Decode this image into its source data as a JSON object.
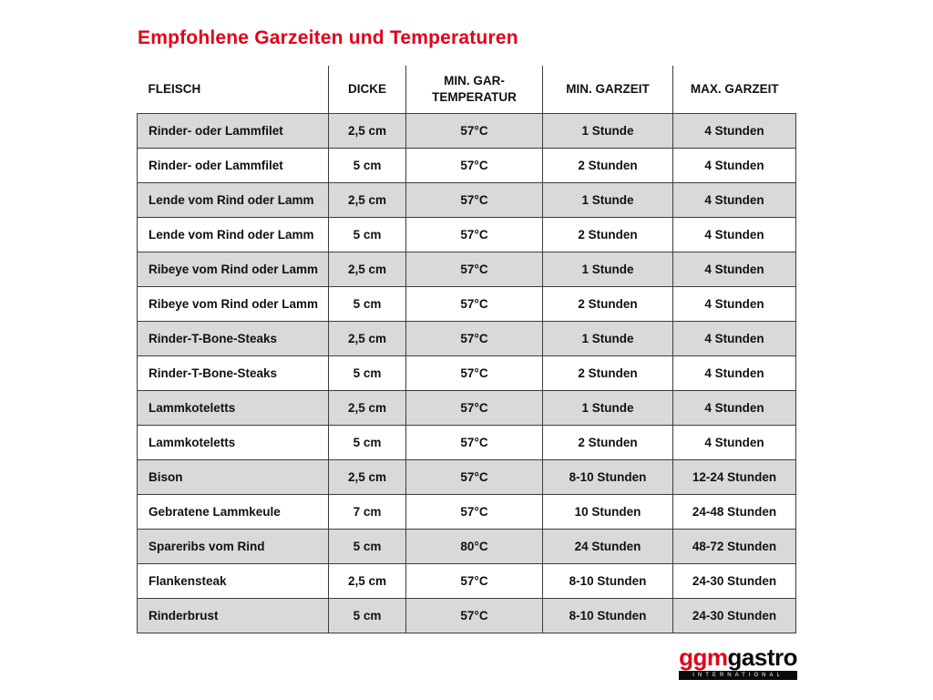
{
  "title": "Empfohlene Garzeiten und Temperaturen",
  "table": {
    "columns": [
      "FLEISCH",
      "DICKE",
      "MIN. GAR-TEMPERATUR",
      "MIN. GARZEIT",
      "MAX. GARZEIT"
    ],
    "rows": [
      [
        "Rinder- oder Lammfilet",
        "2,5 cm",
        "57°C",
        "1 Stunde",
        "4 Stunden"
      ],
      [
        "Rinder- oder Lammfilet",
        "5 cm",
        "57°C",
        "2 Stunden",
        "4 Stunden"
      ],
      [
        "Lende vom Rind oder Lamm",
        "2,5 cm",
        "57°C",
        "1 Stunde",
        "4 Stunden"
      ],
      [
        "Lende vom Rind oder Lamm",
        "5 cm",
        "57°C",
        "2 Stunden",
        "4 Stunden"
      ],
      [
        "Ribeye vom Rind oder Lamm",
        "2,5 cm",
        "57°C",
        "1 Stunde",
        "4 Stunden"
      ],
      [
        "Ribeye vom Rind oder Lamm",
        "5 cm",
        "57°C",
        "2 Stunden",
        "4 Stunden"
      ],
      [
        "Rinder-T-Bone-Steaks",
        "2,5 cm",
        "57°C",
        "1 Stunde",
        "4 Stunden"
      ],
      [
        "Rinder-T-Bone-Steaks",
        "5 cm",
        "57°C",
        "2 Stunden",
        "4 Stunden"
      ],
      [
        "Lammkoteletts",
        "2,5 cm",
        "57°C",
        "1 Stunde",
        "4 Stunden"
      ],
      [
        "Lammkoteletts",
        "5 cm",
        "57°C",
        "2 Stunden",
        "4 Stunden"
      ],
      [
        "Bison",
        "2,5 cm",
        "57°C",
        "8-10 Stunden",
        "12-24 Stunden"
      ],
      [
        "Gebratene Lammkeule",
        "7 cm",
        "57°C",
        "10 Stunden",
        "24-48 Stunden"
      ],
      [
        "Spareribs vom Rind",
        "5 cm",
        "80°C",
        "24 Stunden",
        "48-72 Stunden"
      ],
      [
        "Flankensteak",
        "2,5 cm",
        "57°C",
        "8-10 Stunden",
        "24-30 Stunden"
      ],
      [
        "Rinderbrust",
        "5 cm",
        "57°C",
        "8-10 Stunden",
        "24-30 Stunden"
      ]
    ]
  },
  "logo": {
    "part1": "ggm",
    "part2": "gastro",
    "subtitle": "INTERNATIONAL"
  },
  "colors": {
    "title_red": "#e2001a",
    "logo_red": "#e2001a",
    "row_gray": "#d9d9d9",
    "border": "#3c3c3c",
    "text": "#111111"
  }
}
